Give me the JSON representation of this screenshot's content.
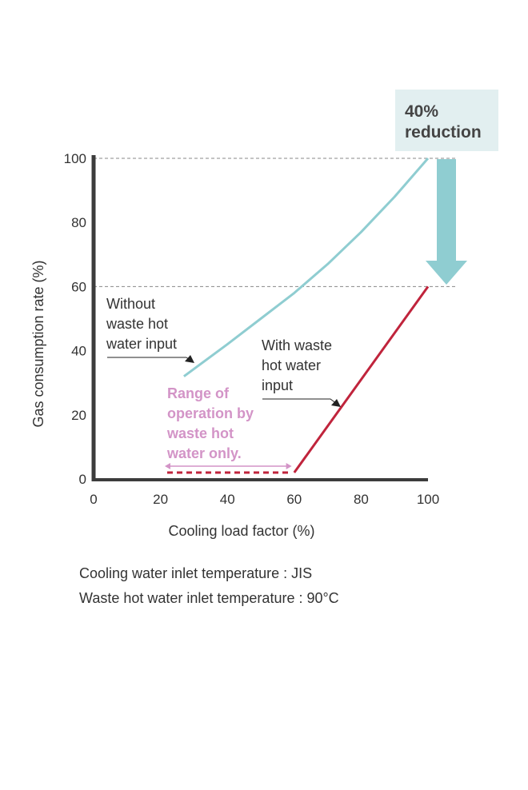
{
  "chart_data": {
    "type": "line",
    "xlabel": "Cooling load factor (%)",
    "ylabel": "Gas consumption rate (%)",
    "xlim": [
      0,
      100
    ],
    "ylim": [
      0,
      100
    ],
    "x_ticks": [
      "0",
      "20",
      "40",
      "60",
      "80",
      "100"
    ],
    "y_ticks": [
      "0",
      "20",
      "40",
      "60",
      "80",
      "100"
    ],
    "reference_lines_y": [
      100,
      60
    ],
    "series": [
      {
        "name": "Without waste hot water input",
        "color": "#8fcdd1",
        "points": [
          [
            27,
            32
          ],
          [
            40,
            42
          ],
          [
            50,
            50
          ],
          [
            60,
            58
          ],
          [
            70,
            67
          ],
          [
            80,
            77
          ],
          [
            90,
            88
          ],
          [
            100,
            100
          ]
        ]
      },
      {
        "name": "With waste hot water input",
        "color": "#c0243c",
        "points": [
          [
            60,
            2
          ],
          [
            100,
            60
          ]
        ]
      },
      {
        "name": "Range of operation by waste hot water only.",
        "color": "#c0243c",
        "style": "dashed",
        "points": [
          [
            22,
            2
          ],
          [
            59,
            2
          ]
        ]
      }
    ],
    "annotations": {
      "without": [
        "Without",
        "waste hot",
        "water input"
      ],
      "with": [
        "With waste",
        "hot water",
        "input"
      ],
      "range": [
        "Range of",
        "operation by",
        "waste hot",
        "water only."
      ],
      "reduction": [
        "40%",
        "reduction"
      ],
      "range_x": [
        22,
        59
      ]
    }
  },
  "colors": {
    "teal": "#8fcdd1",
    "red": "#c0243c",
    "pink": "#d394c7",
    "box": "#e2eff0",
    "axis": "#3c3c3c"
  },
  "notes": [
    "Cooling water inlet temperature : JIS",
    "Waste hot water inlet temperature : 90°C"
  ]
}
